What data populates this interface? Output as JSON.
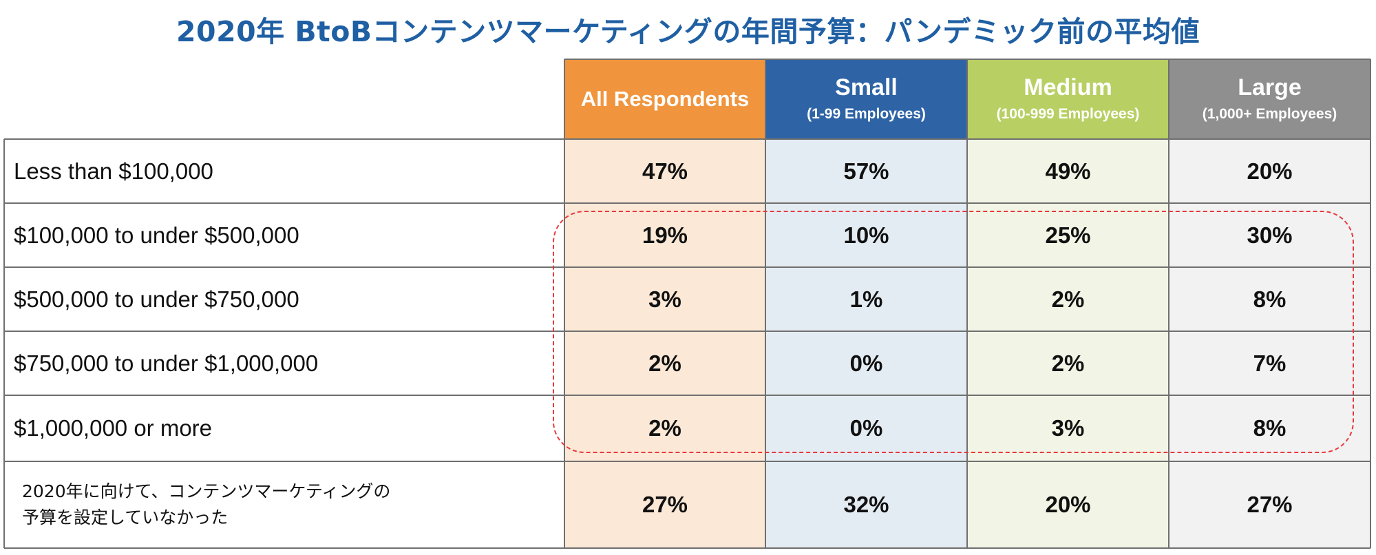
{
  "chart_data": {
    "type": "table",
    "title": "2020年 BtoBコンテンツマーケティングの年間予算：パンデミック前の平均値",
    "columns": [
      {
        "name": "All Respondents",
        "sub": "",
        "color": "#f0953e"
      },
      {
        "name": "Small",
        "sub": "(1-99 Employees)",
        "color": "#2e64a6"
      },
      {
        "name": "Medium",
        "sub": "(100-999 Employees)",
        "color": "#b8cf63"
      },
      {
        "name": "Large",
        "sub": "(1,000+ Employees)",
        "color": "#8f8f8f"
      }
    ],
    "column_fill_colors": [
      "#fbe8d6",
      "#e4ecf3",
      "#f2f5e5",
      "#f2f2f2"
    ],
    "rows": [
      {
        "label": "Less than $100,000",
        "values": [
          "47%",
          "57%",
          "49%",
          "20%"
        ]
      },
      {
        "label": "$100,000 to under $500,000",
        "values": [
          "19%",
          "10%",
          "25%",
          "30%"
        ]
      },
      {
        "label": "$500,000 to under $750,000",
        "values": [
          "3%",
          "1%",
          "2%",
          "8%"
        ]
      },
      {
        "label": "$750,000 to under $1,000,000",
        "values": [
          "2%",
          "0%",
          "2%",
          "7%"
        ]
      },
      {
        "label": "$1,000,000 or more",
        "values": [
          "2%",
          "0%",
          "3%",
          "8%"
        ]
      },
      {
        "label": "2020年に向けて、コンテンツマーケティングの\n予算を設定していなかった",
        "values": [
          "27%",
          "32%",
          "20%",
          "27%"
        ]
      }
    ],
    "highlighted_rows": [
      1,
      2,
      3,
      4
    ],
    "highlight_color": "#e8383d"
  }
}
